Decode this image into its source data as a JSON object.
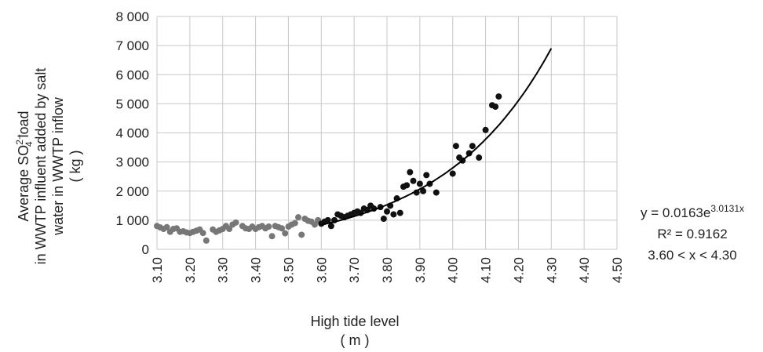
{
  "chart_data": {
    "type": "scatter",
    "xlabel": "High tide level",
    "xlabel_unit": "( m )",
    "ylabel_lines": [
      "Average SO",
      "2−",
      "4",
      " load",
      "in WWTP influent added by salt",
      "water in WWTP inflow",
      "( kg )"
    ],
    "xlim": [
      3.1,
      4.5
    ],
    "ylim": [
      0,
      8000
    ],
    "x_ticks": [
      "3.10",
      "3.20",
      "3.30",
      "3.40",
      "3.50",
      "3.60",
      "3.70",
      "3.80",
      "3.90",
      "4.00",
      "4.10",
      "4.20",
      "4.30",
      "4.40",
      "4.50"
    ],
    "y_ticks": [
      "0",
      "1 000",
      "2 000",
      "3 000",
      "4 000",
      "5 000",
      "6 000",
      "7 000",
      "8 000"
    ],
    "grid": true,
    "series": [
      {
        "color": "#777777",
        "points": [
          [
            3.1,
            800
          ],
          [
            3.11,
            750
          ],
          [
            3.12,
            700
          ],
          [
            3.13,
            760
          ],
          [
            3.14,
            600
          ],
          [
            3.15,
            700
          ],
          [
            3.16,
            720
          ],
          [
            3.17,
            600
          ],
          [
            3.18,
            620
          ],
          [
            3.19,
            580
          ],
          [
            3.2,
            560
          ],
          [
            3.21,
            600
          ],
          [
            3.22,
            640
          ],
          [
            3.23,
            680
          ],
          [
            3.24,
            560
          ],
          [
            3.25,
            300
          ],
          [
            3.27,
            680
          ],
          [
            3.28,
            600
          ],
          [
            3.29,
            650
          ],
          [
            3.3,
            700
          ],
          [
            3.31,
            800
          ],
          [
            3.32,
            700
          ],
          [
            3.33,
            850
          ],
          [
            3.34,
            920
          ],
          [
            3.36,
            800
          ],
          [
            3.37,
            720
          ],
          [
            3.38,
            700
          ],
          [
            3.39,
            780
          ],
          [
            3.4,
            700
          ],
          [
            3.41,
            760
          ],
          [
            3.42,
            800
          ],
          [
            3.43,
            720
          ],
          [
            3.44,
            780
          ],
          [
            3.45,
            450
          ],
          [
            3.46,
            800
          ],
          [
            3.47,
            760
          ],
          [
            3.48,
            720
          ],
          [
            3.49,
            550
          ],
          [
            3.5,
            780
          ],
          [
            3.51,
            850
          ],
          [
            3.52,
            900
          ],
          [
            3.53,
            1100
          ],
          [
            3.54,
            500
          ],
          [
            3.55,
            1050
          ],
          [
            3.56,
            980
          ],
          [
            3.57,
            950
          ],
          [
            3.58,
            850
          ],
          [
            3.59,
            1000
          ]
        ]
      },
      {
        "color": "#111111",
        "points": [
          [
            3.6,
            880
          ],
          [
            3.61,
            950
          ],
          [
            3.62,
            1000
          ],
          [
            3.63,
            800
          ],
          [
            3.64,
            1000
          ],
          [
            3.65,
            1200
          ],
          [
            3.66,
            1150
          ],
          [
            3.67,
            1100
          ],
          [
            3.68,
            1150
          ],
          [
            3.69,
            1200
          ],
          [
            3.7,
            1250
          ],
          [
            3.71,
            1300
          ],
          [
            3.72,
            1250
          ],
          [
            3.73,
            1400
          ],
          [
            3.74,
            1350
          ],
          [
            3.75,
            1500
          ],
          [
            3.76,
            1400
          ],
          [
            3.78,
            1450
          ],
          [
            3.79,
            1050
          ],
          [
            3.8,
            1300
          ],
          [
            3.81,
            1500
          ],
          [
            3.82,
            1200
          ],
          [
            3.83,
            1750
          ],
          [
            3.84,
            1250
          ],
          [
            3.85,
            2150
          ],
          [
            3.86,
            2200
          ],
          [
            3.87,
            2650
          ],
          [
            3.88,
            2350
          ],
          [
            3.89,
            1950
          ],
          [
            3.9,
            2250
          ],
          [
            3.91,
            2000
          ],
          [
            3.92,
            2550
          ],
          [
            3.93,
            2250
          ],
          [
            3.95,
            1950
          ],
          [
            4.0,
            2600
          ],
          [
            4.01,
            3550
          ],
          [
            4.02,
            3150
          ],
          [
            4.03,
            3050
          ],
          [
            4.05,
            3300
          ],
          [
            4.06,
            3550
          ],
          [
            4.08,
            3150
          ],
          [
            4.1,
            4100
          ],
          [
            4.12,
            4950
          ],
          [
            4.13,
            4900
          ],
          [
            4.14,
            5250
          ]
        ]
      }
    ],
    "trendline": {
      "type": "exponential",
      "a": 0.0163,
      "b": 3.0131,
      "x_range": [
        3.6,
        4.3
      ],
      "equation_prefix": "y = 0.0163e",
      "equation_exponent": "3.0131x",
      "r_squared": "R² = 0.9162",
      "range_label": "3.60 < x < 4.30"
    }
  }
}
